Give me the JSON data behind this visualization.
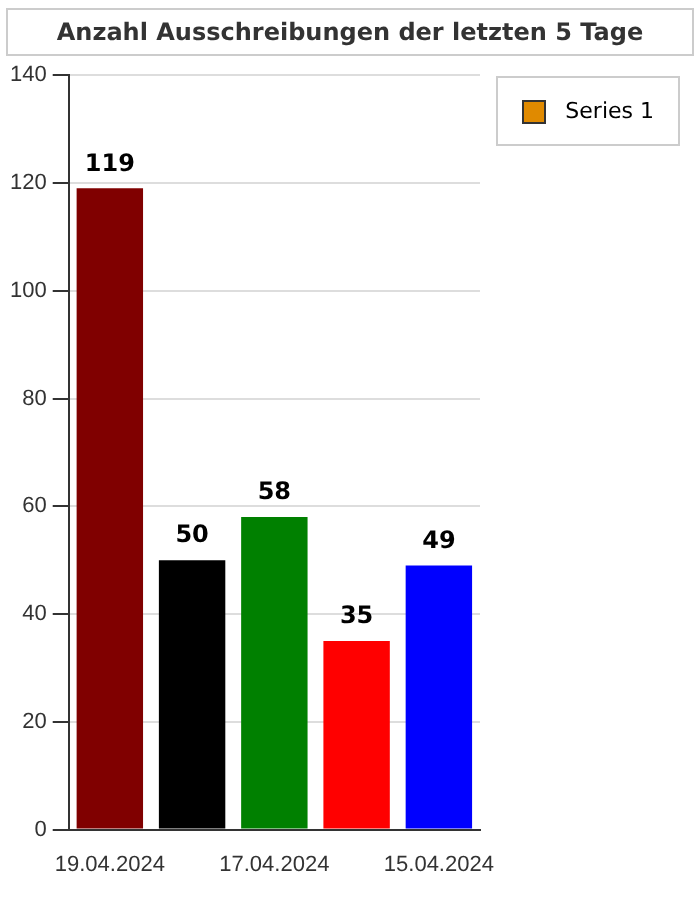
{
  "chart_data": {
    "type": "bar",
    "title": "Anzahl Ausschreibungen der letzten 5 Tage",
    "categories": [
      "19.04.2024",
      null,
      "17.04.2024",
      null,
      "15.04.2024"
    ],
    "series": [
      {
        "name": "Series 1",
        "color": "#e08a00",
        "colors": [
          "#800000",
          "#000000",
          "#008000",
          "#ff0000",
          "#0000ff"
        ],
        "values": [
          119,
          50,
          58,
          35,
          49
        ]
      }
    ],
    "ylim": [
      0,
      140
    ],
    "yticks": [
      0,
      20,
      40,
      60,
      80,
      100,
      120,
      140
    ],
    "grid": "y",
    "data_labels": true,
    "legend": "top right"
  }
}
